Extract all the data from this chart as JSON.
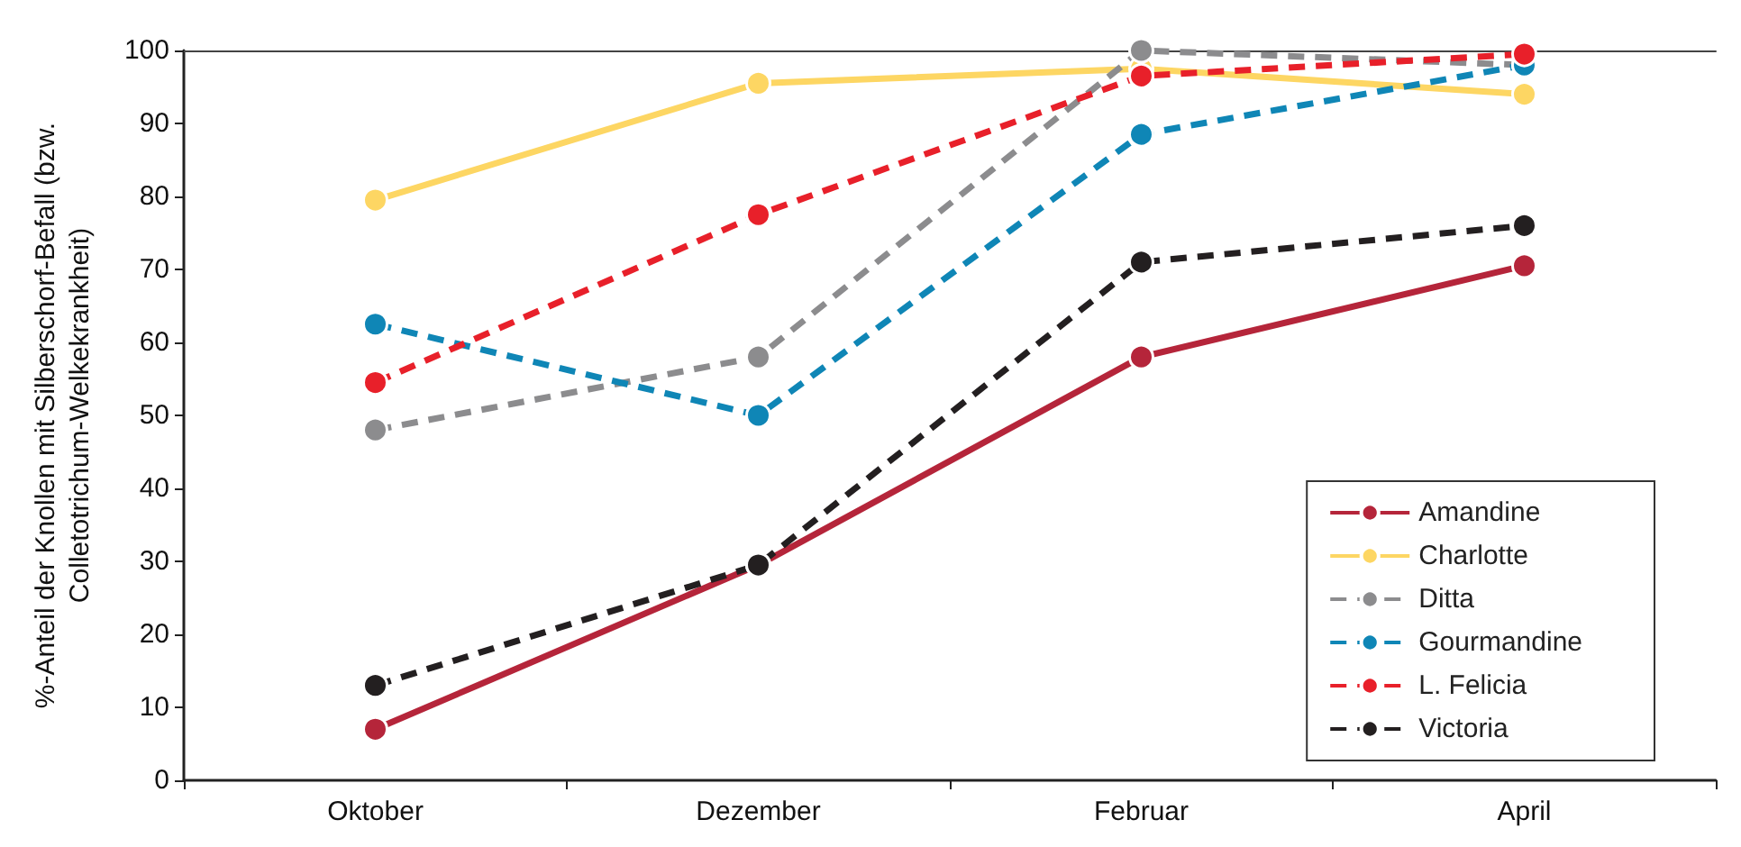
{
  "chart_data": {
    "type": "line",
    "ylabel": "%-Anteil der Knollen mit Silberschorf-Befall (bzw.\nColletotrichum-Welkekrankheit)",
    "categories": [
      "Oktober",
      "Dezember",
      "Februar",
      "April"
    ],
    "ylim": [
      0,
      100
    ],
    "yticks": [
      0,
      10,
      20,
      30,
      40,
      50,
      60,
      70,
      80,
      90,
      100
    ],
    "grid": false,
    "legend": "bottom right",
    "marker": "circle",
    "series": [
      {
        "name": "Amandine",
        "color": "#b5253a",
        "line_style": "solid",
        "values": [
          7,
          29.5,
          58,
          70.5
        ]
      },
      {
        "name": "Charlotte",
        "color": "#fdd663",
        "line_style": "solid",
        "values": [
          79.5,
          95.5,
          97.5,
          94
        ]
      },
      {
        "name": "Ditta",
        "color": "#8c8c8e",
        "line_style": "dashed",
        "values": [
          48,
          58,
          100,
          98
        ]
      },
      {
        "name": "Gourmandine",
        "color": "#0f86b6",
        "line_style": "dashed",
        "values": [
          62.5,
          50,
          88.5,
          98
        ]
      },
      {
        "name": "L. Felicia",
        "color": "#e8202a",
        "line_style": "dashed",
        "values": [
          54.5,
          77.5,
          96.5,
          99.5
        ]
      },
      {
        "name": "Victoria",
        "color": "#231f20",
        "line_style": "dashed",
        "values": [
          13,
          29.5,
          71,
          76
        ]
      }
    ]
  }
}
